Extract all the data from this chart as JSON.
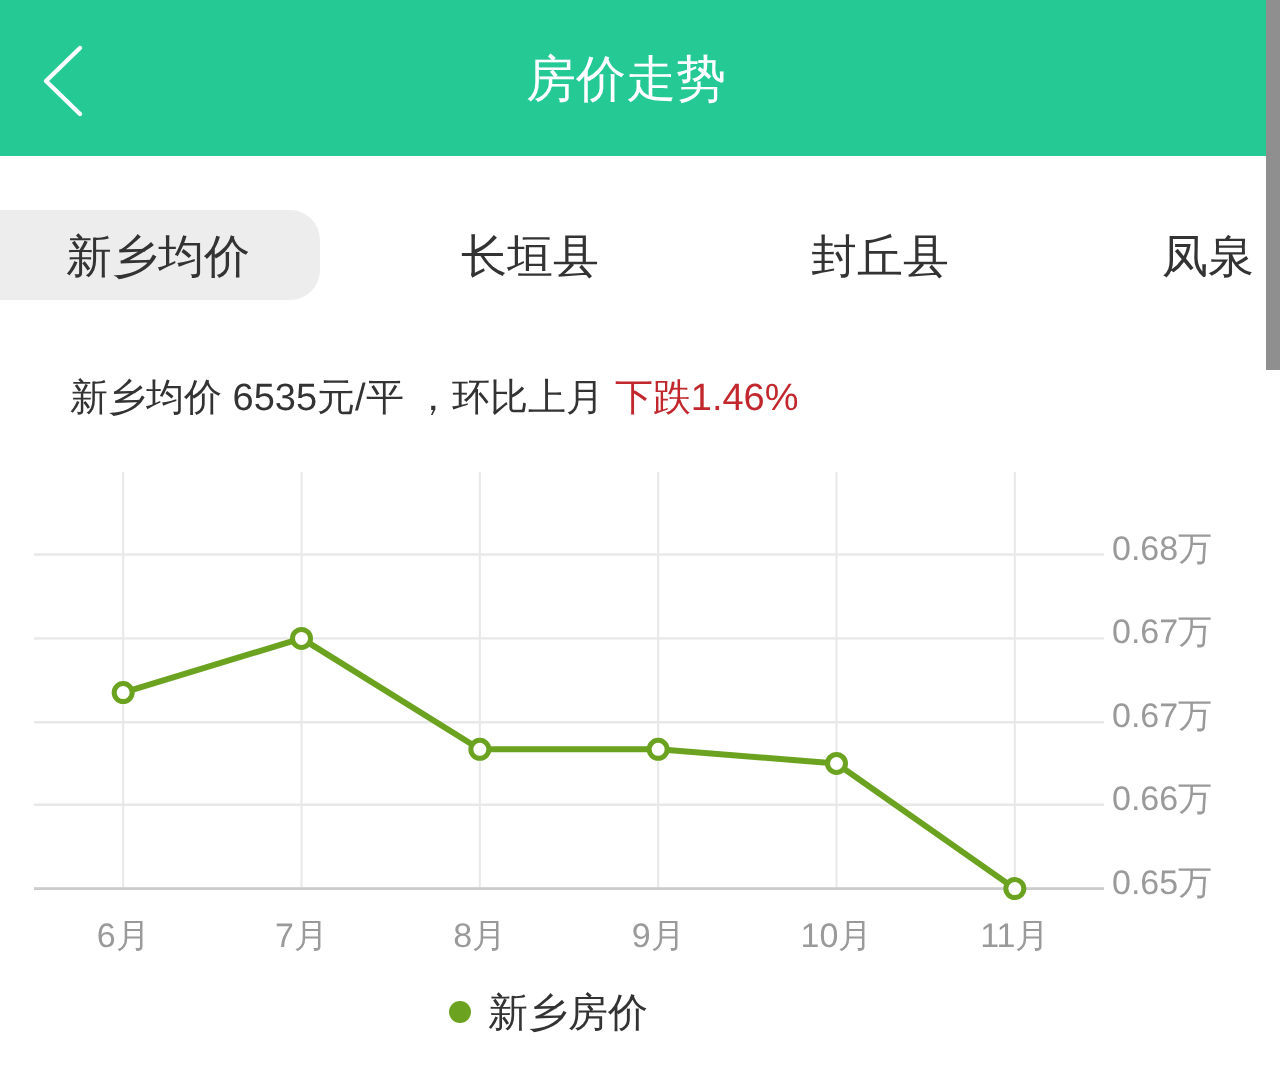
{
  "chart_data": {
    "type": "line",
    "title": "房价走势",
    "subtitle": "新乡均价 6535元/平 ，环比上月 下跌1.46%",
    "annotations": [
      "新乡均价",
      "长垣县",
      "封丘县",
      "凤泉"
    ],
    "categories": [
      "6月",
      "7月",
      "8月",
      "9月",
      "10月",
      "11月"
    ],
    "series": [
      {
        "name": "新乡房价",
        "color": "#6ba320",
        "values": [
          0.6687,
          0.6729,
          0.6643,
          0.6643,
          0.6632,
          0.6535
        ]
      }
    ],
    "ylim": [
      0.6535,
      0.6858
    ],
    "yticks": [
      {
        "value": 0.6535,
        "label": "0.65万"
      },
      {
        "value": 0.66,
        "label": "0.66万"
      },
      {
        "value": 0.6664,
        "label": "0.67万"
      },
      {
        "value": 0.6729,
        "label": "0.67万"
      },
      {
        "value": 0.6794,
        "label": "0.68万"
      }
    ],
    "grid": true,
    "legend": "bottom",
    "marker": "circle",
    "line_style": "solid"
  }
}
